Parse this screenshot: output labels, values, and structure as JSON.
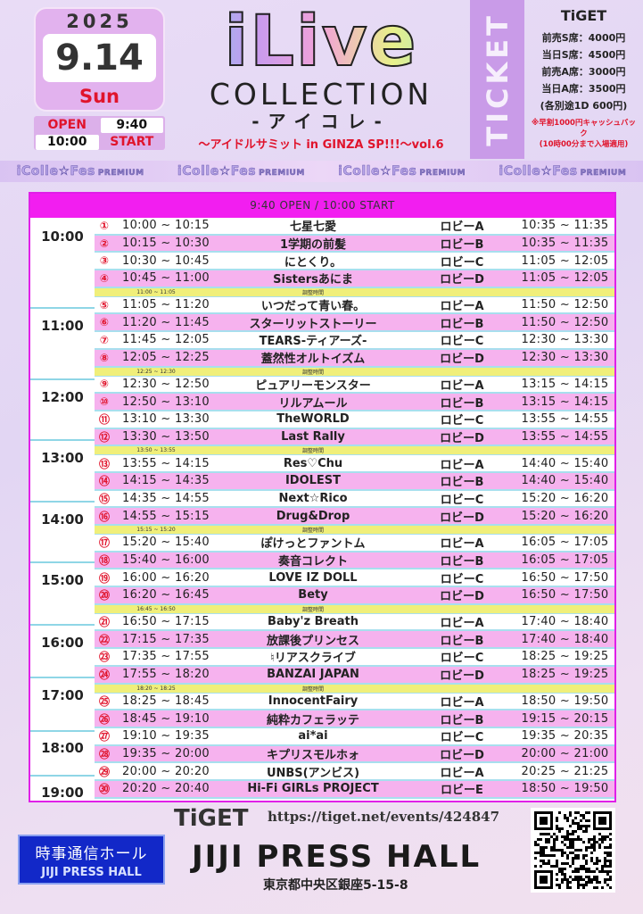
{
  "date": {
    "year": "2025",
    "day": "9.14",
    "weekday": "Sun"
  },
  "open_start": {
    "open_label": "OPEN",
    "open_time": "9:40",
    "start_time": "10:00",
    "start_label": "START"
  },
  "logo": {
    "main": "iLive",
    "collection": "COLLECTION",
    "kana": "-アイコレ-",
    "subtitle": "〜アイドルサミット in GINZA SP!!!〜vol.6"
  },
  "ticket": {
    "band_label": "TICKET",
    "vendor": "TiGET",
    "prices": [
      "前売S席：4000円",
      "当日S席：4500円",
      "前売A席：3000円",
      "当日A席：3500円"
    ],
    "drink": "(各別途1D 600円)",
    "note1": "※早割1000円キャッシュバック",
    "note2": "(10時00分まで入場適用)"
  },
  "banner": {
    "text": "iColle☆Fes",
    "sub": "PREMIUM",
    "repeat": 4
  },
  "table": {
    "header": "9:40 OPEN / 10:00 START",
    "break_label": "調整時間",
    "hours": [
      "10:00",
      "11:00",
      "12:00",
      "13:00",
      "14:00",
      "15:00",
      "16:00",
      "17:00",
      "18:00",
      "19:00"
    ],
    "rows": [
      {
        "num": "①",
        "time": "10:00 ~ 10:15",
        "name": "七星七愛",
        "lobby": "ロビーA",
        "bench": "10:35 ~ 11:35"
      },
      {
        "num": "②",
        "time": "10:15 ~ 10:30",
        "name": "1学期の前髪",
        "lobby": "ロビーB",
        "bench": "10:35 ~ 11:35"
      },
      {
        "num": "③",
        "time": "10:30 ~ 10:45",
        "name": "にとくり。",
        "lobby": "ロビーC",
        "bench": "11:05 ~ 12:05"
      },
      {
        "num": "④",
        "time": "10:45 ~ 11:00",
        "name": "Sistersあにま",
        "lobby": "ロビーD",
        "bench": "11:05 ~ 12:05"
      },
      {
        "break": "11:00 ~ 11:05"
      },
      {
        "num": "⑤",
        "time": "11:05 ~ 11:20",
        "name": "いつだって青い春。",
        "lobby": "ロビーA",
        "bench": "11:50 ~ 12:50"
      },
      {
        "num": "⑥",
        "time": "11:20 ~ 11:45",
        "name": "スターリットストーリー",
        "lobby": "ロビーB",
        "bench": "11:50 ~ 12:50"
      },
      {
        "num": "⑦",
        "time": "11:45 ~ 12:05",
        "name": "TEARS-ティアーズ-",
        "lobby": "ロビーC",
        "bench": "12:30 ~ 13:30"
      },
      {
        "num": "⑧",
        "time": "12:05 ~ 12:25",
        "name": "蓋然性オルトイズム",
        "lobby": "ロビーD",
        "bench": "12:30 ~ 13:30"
      },
      {
        "break": "12:25 ~ 12:30"
      },
      {
        "num": "⑨",
        "time": "12:30 ~ 12:50",
        "name": "ピュアリーモンスター",
        "lobby": "ロビーA",
        "bench": "13:15 ~ 14:15"
      },
      {
        "num": "⑩",
        "time": "12:50 ~ 13:10",
        "name": "リルアムール",
        "lobby": "ロビーB",
        "bench": "13:15 ~ 14:15"
      },
      {
        "num": "⑪",
        "time": "13:10 ~ 13:30",
        "name": "TheWORLD",
        "lobby": "ロビーC",
        "bench": "13:55 ~ 14:55"
      },
      {
        "num": "⑫",
        "time": "13:30 ~ 13:50",
        "name": "Last Rally",
        "lobby": "ロビーD",
        "bench": "13:55 ~ 14:55"
      },
      {
        "break": "13:50 ~ 13:55"
      },
      {
        "num": "⑬",
        "time": "13:55 ~ 14:15",
        "name": "Res♡Chu",
        "lobby": "ロビーA",
        "bench": "14:40 ~ 15:40"
      },
      {
        "num": "⑭",
        "time": "14:15 ~ 14:35",
        "name": "IDOLEST",
        "lobby": "ロビーB",
        "bench": "14:40 ~ 15:40"
      },
      {
        "num": "⑮",
        "time": "14:35 ~ 14:55",
        "name": "Next☆Rico",
        "lobby": "ロビーC",
        "bench": "15:20 ~ 16:20"
      },
      {
        "num": "⑯",
        "time": "14:55 ~ 15:15",
        "name": "Drug&Drop",
        "lobby": "ロビーD",
        "bench": "15:20 ~ 16:20"
      },
      {
        "break": "15:15 ~ 15:20"
      },
      {
        "num": "⑰",
        "time": "15:20 ~ 15:40",
        "name": "ぽけっとファントム",
        "lobby": "ロビーA",
        "bench": "16:05 ~ 17:05"
      },
      {
        "num": "⑱",
        "time": "15:40 ~ 16:00",
        "name": "奏音コレクト",
        "lobby": "ロビーB",
        "bench": "16:05 ~ 17:05"
      },
      {
        "num": "⑲",
        "time": "16:00 ~ 16:20",
        "name": "LOVE IZ DOLL",
        "lobby": "ロビーC",
        "bench": "16:50 ~ 17:50"
      },
      {
        "num": "⑳",
        "time": "16:20 ~ 16:45",
        "name": "Bety",
        "lobby": "ロビーD",
        "bench": "16:50 ~ 17:50"
      },
      {
        "break": "16:45 ~ 16:50"
      },
      {
        "num": "㉑",
        "time": "16:50 ~ 17:15",
        "name": "Baby'z Breath",
        "lobby": "ロビーA",
        "bench": "17:40 ~ 18:40"
      },
      {
        "num": "㉒",
        "time": "17:15 ~ 17:35",
        "name": "放課後プリンセス",
        "lobby": "ロビーB",
        "bench": "17:40 ~ 18:40"
      },
      {
        "num": "㉓",
        "time": "17:35 ~ 17:55",
        "name": "♮リアスクライブ",
        "lobby": "ロビーC",
        "bench": "18:25 ~ 19:25"
      },
      {
        "num": "㉔",
        "time": "17:55 ~ 18:20",
        "name": "BANZAI JAPAN",
        "lobby": "ロビーD",
        "bench": "18:25 ~ 19:25"
      },
      {
        "break": "18:20 ~ 18:25"
      },
      {
        "num": "㉕",
        "time": "18:25 ~ 18:45",
        "name": "InnocentFairy",
        "lobby": "ロビーA",
        "bench": "18:50 ~ 19:50"
      },
      {
        "num": "㉖",
        "time": "18:45 ~ 19:10",
        "name": "純粋カフェラッテ",
        "lobby": "ロビーB",
        "bench": "19:15 ~ 20:15"
      },
      {
        "num": "㉗",
        "time": "19:10 ~ 19:35",
        "name": "ai*ai",
        "lobby": "ロビーC",
        "bench": "19:35 ~ 20:35"
      },
      {
        "num": "㉘",
        "time": "19:35 ~ 20:00",
        "name": "キプリスモルホォ",
        "lobby": "ロビーD",
        "bench": "20:00 ~ 21:00"
      },
      {
        "num": "㉙",
        "time": "20:00 ~ 20:20",
        "name": "UNBS(アンビス)",
        "lobby": "ロビーA",
        "bench": "20:25 ~ 21:25"
      },
      {
        "num": "㉚",
        "time": "20:20 ~ 20:40",
        "name": "Hi-Fi GIRLs PROJECT",
        "lobby": "ロビーE",
        "bench": "18:50 ~ 19:50"
      }
    ]
  },
  "footer": {
    "venue_ja": "時事通信ホール",
    "venue_en": "JIJI PRESS HALL",
    "tiget": "TiGET",
    "url": "https://tiget.net/events/424847",
    "hall": "JIJI PRESS HALL",
    "address": "東京都中央区銀座5-15-8",
    "qr_icon": "qr-code-icon"
  },
  "colors": {
    "magenta": "#f21ef0",
    "pink_row": "#f6b2ee",
    "break_yellow": "#f0ef7a",
    "ticket_band": "#c99be8",
    "accent_red": "#e0142c",
    "venue_blue": "#1228c8"
  }
}
